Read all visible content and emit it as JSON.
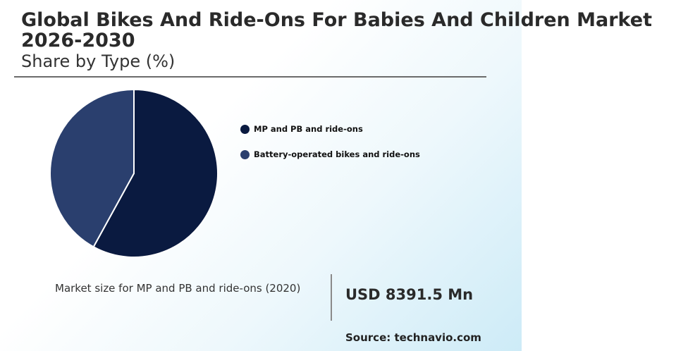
{
  "header": {
    "title_line1": "Global Bikes And Ride-Ons For Babies And Children Market",
    "title_line2": "2026-2030",
    "subtitle": "Share by Type (%)"
  },
  "chart_data": {
    "type": "pie",
    "categories": [
      "MP and PB and ride-ons",
      "Battery-operated bikes and ride-ons"
    ],
    "values": [
      58,
      42
    ],
    "colors": [
      "#0a1a40",
      "#2a3f6e"
    ],
    "legend_placement": "right"
  },
  "market": {
    "label": "Market size for MP and PB and ride-ons (2020)",
    "value": "USD 8391.5 Mn"
  },
  "source": "Source: technavio.com"
}
